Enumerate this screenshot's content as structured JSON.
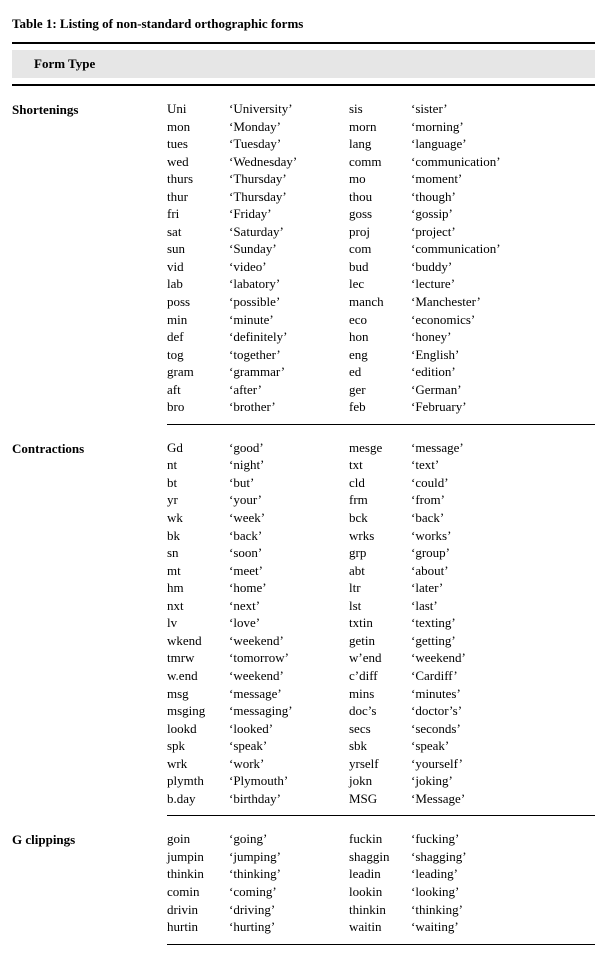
{
  "caption": "Table 1: Listing of non-standard orthographic forms",
  "formTypeHeader": "Form Type",
  "sections": [
    {
      "label": "Shortenings",
      "pairs": [
        [
          "Uni",
          "‘University’",
          "sis",
          "‘sister’"
        ],
        [
          "mon",
          "‘Monday’",
          "morn",
          "‘morning’"
        ],
        [
          "tues",
          "‘Tuesday’",
          "lang",
          "‘language’"
        ],
        [
          "wed",
          "‘Wednesday’",
          "comm",
          "‘communication’"
        ],
        [
          "thurs",
          "‘Thursday’",
          "mo",
          "‘moment’"
        ],
        [
          "thur",
          "‘Thursday’",
          "thou",
          "‘though’"
        ],
        [
          "fri",
          "‘Friday’",
          "goss",
          "‘gossip’"
        ],
        [
          "sat",
          "‘Saturday’",
          "proj",
          "‘project’"
        ],
        [
          "sun",
          "‘Sunday’",
          "com",
          "‘communication’"
        ],
        [
          "vid",
          "‘video’",
          "bud",
          "‘buddy’"
        ],
        [
          "lab",
          "‘labatory’",
          "lec",
          "‘lecture’"
        ],
        [
          "poss",
          "‘possible’",
          "manch",
          "‘Manchester’"
        ],
        [
          "min",
          "‘minute’",
          "eco",
          "‘economics’"
        ],
        [
          "def",
          "‘definitely’",
          "hon",
          "‘honey’"
        ],
        [
          "tog",
          "‘together’",
          "eng",
          "‘English’"
        ],
        [
          "gram",
          "‘grammar’",
          "ed",
          "‘edition’"
        ],
        [
          "aft",
          "‘after’",
          "ger",
          "‘German’"
        ],
        [
          "bro",
          "‘brother’",
          "feb",
          "‘February’"
        ]
      ]
    },
    {
      "label": "Contractions",
      "pairs": [
        [
          "Gd",
          "‘good’",
          "mesge",
          "‘message’"
        ],
        [
          "nt",
          "‘night’",
          "txt",
          "‘text’"
        ],
        [
          "bt",
          "‘but’",
          "cld",
          "‘could’"
        ],
        [
          "yr",
          "‘your’",
          "frm",
          "‘from’"
        ],
        [
          "wk",
          "‘week’",
          "bck",
          "‘back’"
        ],
        [
          "bk",
          "‘back’",
          "wrks",
          "‘works’"
        ],
        [
          "sn",
          "‘soon’",
          "grp",
          "‘group’"
        ],
        [
          "mt",
          "‘meet’",
          "abt",
          "‘about’"
        ],
        [
          "hm",
          "‘home’",
          "ltr",
          "‘later’"
        ],
        [
          "nxt",
          "‘next’",
          "lst",
          "‘last’"
        ],
        [
          "lv",
          "‘love’",
          "txtin",
          "‘texting’"
        ],
        [
          "wkend",
          "‘weekend’",
          "getin",
          "‘getting’"
        ],
        [
          "tmrw",
          "‘tomorrow’",
          "w’end",
          "‘weekend’"
        ],
        [
          "w.end",
          "‘weekend’",
          "c’diff",
          "‘Cardiff’"
        ],
        [
          "msg",
          "‘message’",
          "mins",
          "‘minutes’"
        ],
        [
          "msging",
          "‘messaging’",
          "doc’s",
          "‘doctor’s’"
        ],
        [
          "lookd",
          "‘looked’",
          "secs",
          "‘seconds’"
        ],
        [
          "spk",
          "‘speak’",
          "sbk",
          "‘speak’"
        ],
        [
          "wrk",
          "‘work’",
          "yrself",
          "‘yourself’"
        ],
        [
          "plymth",
          "‘Plymouth’",
          "jokn",
          "‘joking’"
        ],
        [
          "b.day",
          "‘birthday’",
          "MSG",
          "‘Message’"
        ]
      ]
    },
    {
      "label": "G clippings",
      "pairs": [
        [
          "goin",
          "‘going’",
          "fuckin",
          "‘fucking’"
        ],
        [
          "jumpin",
          "‘jumping’",
          "shaggin",
          "‘shagging’"
        ],
        [
          "thinkin",
          "‘thinking’",
          "leadin",
          "‘leading’"
        ],
        [
          "comin",
          "‘coming’",
          "lookin",
          "‘looking’"
        ],
        [
          "drivin",
          "‘driving’",
          "thinkin",
          "‘thinking’"
        ],
        [
          "hurtin",
          "‘hurting’",
          "waitin",
          "‘waiting’"
        ]
      ]
    }
  ]
}
